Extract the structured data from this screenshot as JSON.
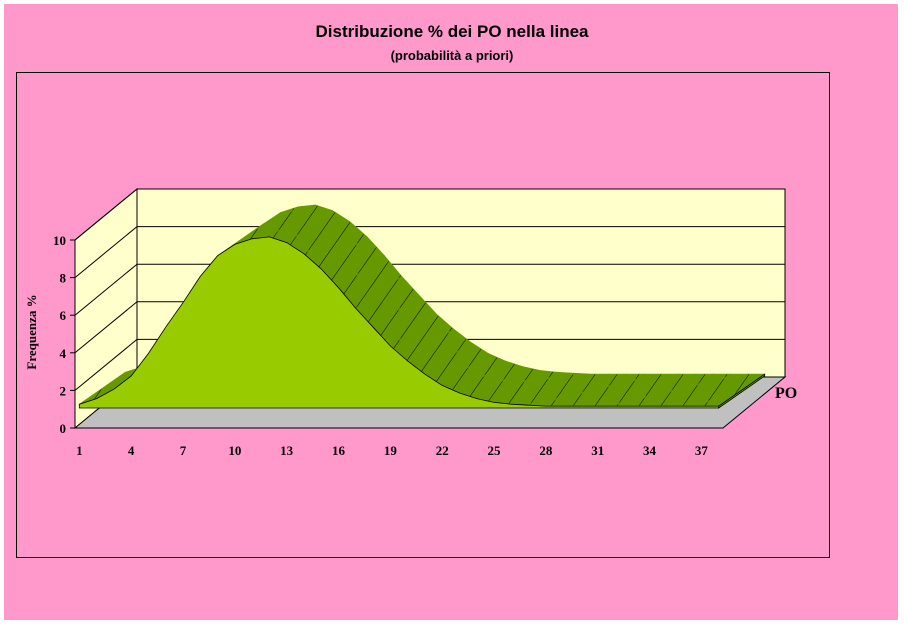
{
  "chart_data": {
    "type": "area",
    "title": "Distribuzione % dei PO nella linea",
    "subtitle": "(probabilità a priori)",
    "ylabel": "Frequenza %",
    "xlabel": "",
    "series_label": "PO",
    "ylim": [
      0,
      10
    ],
    "yticks": [
      0,
      2,
      4,
      6,
      8,
      10
    ],
    "xticks": [
      1,
      4,
      7,
      10,
      13,
      16,
      19,
      22,
      25,
      28,
      31,
      34,
      37
    ],
    "grid": true,
    "three_d": true,
    "x": [
      1,
      2,
      3,
      4,
      5,
      6,
      7,
      8,
      9,
      10,
      11,
      12,
      13,
      14,
      15,
      16,
      17,
      18,
      19,
      20,
      21,
      22,
      23,
      24,
      25,
      26,
      27,
      28,
      29,
      30,
      31,
      32,
      33,
      34,
      35,
      36,
      37,
      38
    ],
    "values": [
      0.2,
      0.5,
      1.0,
      1.7,
      2.9,
      4.3,
      5.6,
      7.0,
      8.1,
      8.7,
      9.0,
      9.1,
      8.8,
      8.2,
      7.4,
      6.4,
      5.3,
      4.3,
      3.3,
      2.5,
      1.8,
      1.2,
      0.8,
      0.5,
      0.3,
      0.2,
      0.15,
      0.1,
      0.1,
      0.1,
      0.1,
      0.1,
      0.1,
      0.1,
      0.1,
      0.1,
      0.1,
      0.1
    ],
    "colors": {
      "background": "#ff99cc",
      "wall": "#ffffcc",
      "floor": "#c0c0c0",
      "area": "#99cc00",
      "area_top": "#669900",
      "grid": "#000000"
    }
  }
}
